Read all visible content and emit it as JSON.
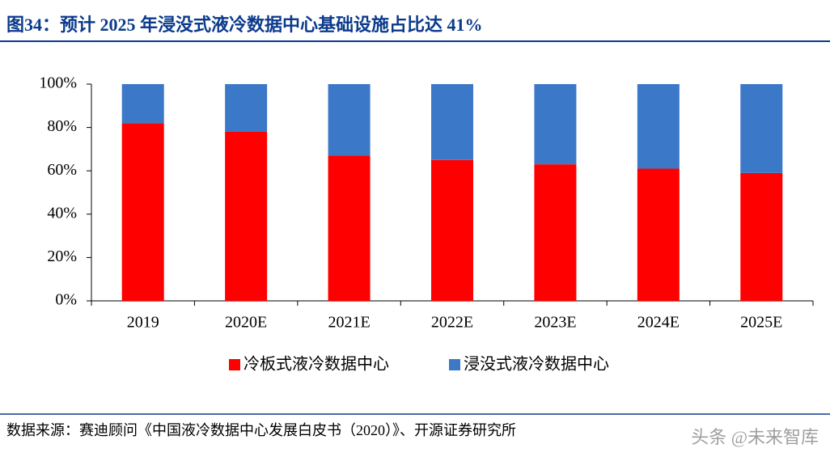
{
  "chart_data": {
    "type": "stacked_bar",
    "title": "图34：预计 2025 年浸没式液冷数据中心基础设施占比达 41%",
    "categories": [
      "2019",
      "2020E",
      "2021E",
      "2022E",
      "2023E",
      "2024E",
      "2025E"
    ],
    "series": [
      {
        "name": "冷板式液冷数据中心",
        "color": "#ff0000",
        "values": [
          82,
          78,
          67,
          65,
          63,
          61,
          59
        ]
      },
      {
        "name": "浸没式液冷数据中心",
        "color": "#3c78c8",
        "values": [
          18,
          22,
          33,
          35,
          37,
          39,
          41
        ]
      }
    ],
    "ylim": [
      0,
      100
    ],
    "yticks": [
      {
        "value": 0,
        "label": "0%"
      },
      {
        "value": 20,
        "label": "20%"
      },
      {
        "value": 40,
        "label": "40%"
      },
      {
        "value": 60,
        "label": "60%"
      },
      {
        "value": 80,
        "label": "80%"
      },
      {
        "value": 100,
        "label": "100%"
      }
    ],
    "grid": false,
    "legend": "bottom",
    "source": "数据来源：赛迪顾问《中国液冷数据中心发展白皮书（2020）》、开源证券研究所",
    "watermark": "头条 @未来智库"
  }
}
